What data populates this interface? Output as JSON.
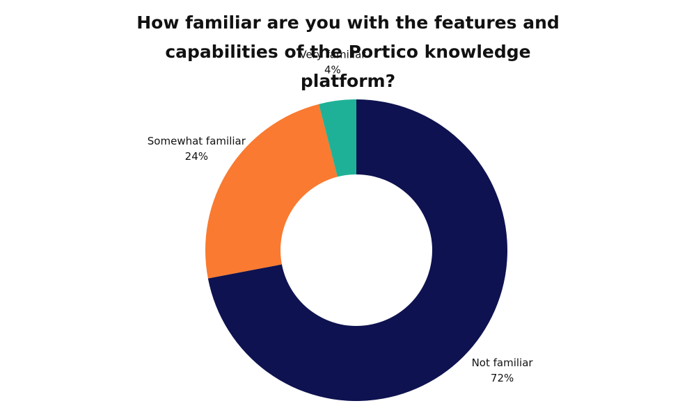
{
  "chart_data": {
    "type": "donut",
    "title": "How familiar are you with the features and capabilities of the Portico knowledge platform?",
    "categories": [
      "Not familiar",
      "Somewhat familiar",
      "Very familiar"
    ],
    "values": [
      72,
      24,
      4
    ],
    "value_labels": [
      "72%",
      "24%",
      "4%"
    ],
    "colors": [
      "#0e1250",
      "#f97a30",
      "#1fb197"
    ]
  }
}
